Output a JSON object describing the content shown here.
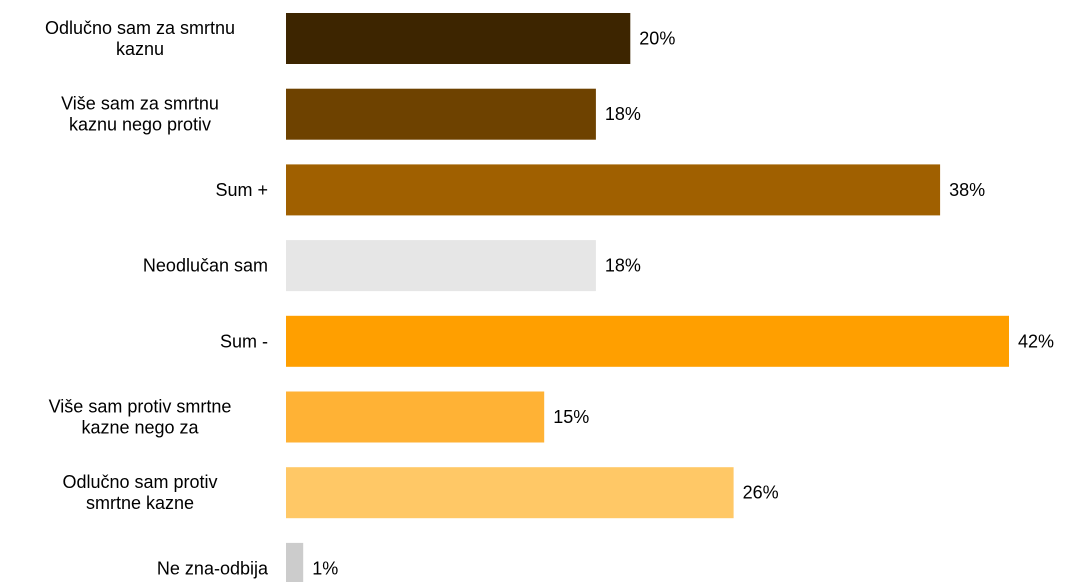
{
  "chart_data": {
    "type": "bar",
    "orientation": "horizontal",
    "title": "",
    "xlabel": "",
    "ylabel": "",
    "xlim": [
      0,
      42
    ],
    "grid": false,
    "legend": "none",
    "categories": [
      [
        "Odlučno sam za smrtnu",
        "kaznu"
      ],
      [
        "Više sam za smrtnu",
        "kaznu nego protiv"
      ],
      [
        "Sum +"
      ],
      [
        "Neodlučan sam"
      ],
      [
        "Sum -"
      ],
      [
        "Više sam protiv smrtne",
        "kazne nego za"
      ],
      [
        "Odlučno sam protiv",
        "smrtne kazne"
      ],
      [
        "Ne zna-odbija"
      ]
    ],
    "values": [
      20,
      18,
      38,
      18,
      42,
      15,
      26,
      1
    ],
    "value_labels": [
      "20%",
      "18%",
      "38%",
      "18%",
      "42%",
      "15%",
      "26%",
      "1%"
    ],
    "colors": [
      "#3d2500",
      "#6e4200",
      "#a06000",
      "#e6e6e6",
      "#ff9f00",
      "#ffb235",
      "#ffc866",
      "#cccccc"
    ]
  }
}
